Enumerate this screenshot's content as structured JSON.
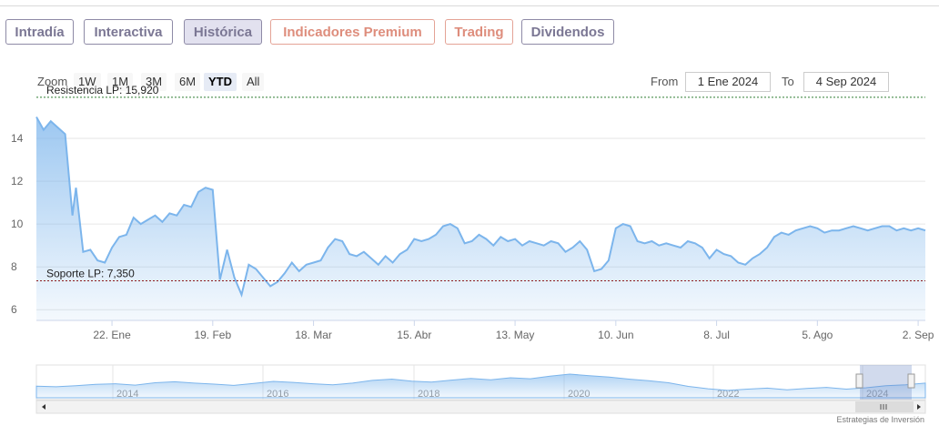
{
  "tabs": [
    {
      "label": "Intradía",
      "style": "purple"
    },
    {
      "label": "Interactiva",
      "style": "purple"
    },
    {
      "label": "Histórica",
      "style": "purple",
      "active": true
    },
    {
      "label": "Indicadores Premium",
      "style": "orange"
    },
    {
      "label": "Trading",
      "style": "orange"
    },
    {
      "label": "Dividendos",
      "style": "purple"
    }
  ],
  "zoom": {
    "label": "Zoom",
    "buttons": [
      "1W",
      "1M",
      "3M",
      "6M",
      "YTD",
      "All"
    ],
    "selected": "YTD"
  },
  "range": {
    "from_label": "From",
    "from_value": "1 Ene 2024",
    "to_label": "To",
    "to_value": "4 Sep 2024"
  },
  "credit": "Estrategias de Inversión",
  "colors": {
    "line": "#7cb5ec",
    "purple_tab": "#7b7794",
    "orange_tab": "#de8d7c",
    "resistance": "#2e7d32",
    "support": "#8b1a1a"
  },
  "chart_data": {
    "type": "area",
    "title": "",
    "xlabel": "",
    "ylabel": "",
    "ylim": [
      5.5,
      16
    ],
    "yticks": [
      6,
      8,
      10,
      12,
      14
    ],
    "x_tick_labels": [
      "22. Ene",
      "19. Feb",
      "18. Mar",
      "15. Abr",
      "13. May",
      "10. Jun",
      "8. Jul",
      "5. Ago",
      "2. Sep"
    ],
    "x_tick_dates": [
      "2024-01-22",
      "2024-02-19",
      "2024-03-18",
      "2024-04-15",
      "2024-05-13",
      "2024-06-10",
      "2024-07-08",
      "2024-08-05",
      "2024-09-02"
    ],
    "x_range": [
      "2024-01-01",
      "2024-09-04"
    ],
    "series": [
      {
        "x": [
          "2024-01-01",
          "2024-01-03",
          "2024-01-05",
          "2024-01-09",
          "2024-01-11",
          "2024-01-12",
          "2024-01-14",
          "2024-01-16",
          "2024-01-18",
          "2024-01-20",
          "2024-01-22",
          "2024-01-24",
          "2024-01-26",
          "2024-01-28",
          "2024-01-30",
          "2024-02-01",
          "2024-02-03",
          "2024-02-05",
          "2024-02-07",
          "2024-02-09",
          "2024-02-11",
          "2024-02-13",
          "2024-02-15",
          "2024-02-17",
          "2024-02-19",
          "2024-02-21",
          "2024-02-23",
          "2024-02-25",
          "2024-02-27",
          "2024-02-29",
          "2024-03-02",
          "2024-03-04",
          "2024-03-06",
          "2024-03-08",
          "2024-03-10",
          "2024-03-12",
          "2024-03-14",
          "2024-03-16",
          "2024-03-18",
          "2024-03-20",
          "2024-03-22",
          "2024-03-24",
          "2024-03-26",
          "2024-03-28",
          "2024-03-30",
          "2024-04-01",
          "2024-04-03",
          "2024-04-05",
          "2024-04-07",
          "2024-04-09",
          "2024-04-11",
          "2024-04-13",
          "2024-04-15",
          "2024-04-17",
          "2024-04-19",
          "2024-04-21",
          "2024-04-23",
          "2024-04-25",
          "2024-04-27",
          "2024-04-29",
          "2024-05-01",
          "2024-05-03",
          "2024-05-05",
          "2024-05-07",
          "2024-05-09",
          "2024-05-11",
          "2024-05-13",
          "2024-05-15",
          "2024-05-17",
          "2024-05-19",
          "2024-05-21",
          "2024-05-23",
          "2024-05-25",
          "2024-05-27",
          "2024-05-29",
          "2024-05-31",
          "2024-06-02",
          "2024-06-04",
          "2024-06-06",
          "2024-06-08",
          "2024-06-10",
          "2024-06-12",
          "2024-06-14",
          "2024-06-16",
          "2024-06-18",
          "2024-06-20",
          "2024-06-22",
          "2024-06-24",
          "2024-06-26",
          "2024-06-28",
          "2024-06-30",
          "2024-07-02",
          "2024-07-04",
          "2024-07-06",
          "2024-07-08",
          "2024-07-10",
          "2024-07-12",
          "2024-07-14",
          "2024-07-16",
          "2024-07-18",
          "2024-07-20",
          "2024-07-22",
          "2024-07-24",
          "2024-07-26",
          "2024-07-28",
          "2024-07-30",
          "2024-08-01",
          "2024-08-03",
          "2024-08-05",
          "2024-08-07",
          "2024-08-09",
          "2024-08-11",
          "2024-08-13",
          "2024-08-15",
          "2024-08-17",
          "2024-08-19",
          "2024-08-21",
          "2024-08-23",
          "2024-08-25",
          "2024-08-27",
          "2024-08-29",
          "2024-08-31",
          "2024-09-02",
          "2024-09-04"
        ],
        "values": [
          15.0,
          14.4,
          14.8,
          14.2,
          10.4,
          11.7,
          8.7,
          8.8,
          8.3,
          8.2,
          8.9,
          9.4,
          9.5,
          10.3,
          10.0,
          10.2,
          10.4,
          10.1,
          10.5,
          10.4,
          10.9,
          10.8,
          11.5,
          11.7,
          11.6,
          7.4,
          8.8,
          7.5,
          6.7,
          8.1,
          7.9,
          7.5,
          7.1,
          7.3,
          7.7,
          8.2,
          7.8,
          8.1,
          8.2,
          8.3,
          8.9,
          9.3,
          9.2,
          8.6,
          8.5,
          8.7,
          8.4,
          8.1,
          8.5,
          8.2,
          8.6,
          8.8,
          9.3,
          9.2,
          9.3,
          9.5,
          9.9,
          10.0,
          9.8,
          9.1,
          9.2,
          9.5,
          9.3,
          9.0,
          9.4,
          9.2,
          9.3,
          9.0,
          9.2,
          9.1,
          9.0,
          9.2,
          9.1,
          8.7,
          8.9,
          9.2,
          8.8,
          7.8,
          7.9,
          8.3,
          9.8,
          10.0,
          9.9,
          9.2,
          9.1,
          9.2,
          9.0,
          9.1,
          9.0,
          8.9,
          9.2,
          9.1,
          8.9,
          8.4,
          8.8,
          8.6,
          8.5,
          8.2,
          8.1,
          8.4,
          8.6,
          8.9,
          9.4,
          9.6,
          9.5,
          9.7,
          9.8,
          9.9,
          9.8,
          9.6,
          9.7,
          9.7,
          9.8,
          9.9,
          9.8,
          9.7,
          9.8,
          9.9,
          9.9,
          9.7,
          9.8,
          9.7,
          9.8,
          9.7
        ]
      }
    ],
    "annotations": [
      {
        "label": "Resistencia LP: 15,920",
        "y": 15.92,
        "color": "#2e7d32"
      },
      {
        "label": "Soporte LP: 7,350",
        "y": 7.35,
        "color": "#8b1a1a"
      }
    ],
    "navigator": {
      "x_tick_labels": [
        "2014",
        "2016",
        "2018",
        "2020",
        "2022",
        "2024"
      ],
      "values": [
        9.5,
        9.3,
        9.6,
        10.0,
        10.2,
        9.8,
        10.5,
        10.8,
        10.4,
        10.1,
        9.7,
        10.3,
        10.9,
        10.6,
        10.2,
        9.9,
        10.4,
        11.2,
        11.6,
        11.0,
        10.7,
        11.3,
        11.8,
        11.4,
        12.0,
        11.7,
        12.5,
        13.1,
        12.6,
        12.2,
        11.6,
        11.1,
        10.5,
        9.4,
        8.7,
        8.2,
        8.6,
        8.9,
        8.4,
        8.8,
        9.1,
        8.6,
        9.0,
        9.6,
        9.9,
        10.4
      ]
    }
  }
}
